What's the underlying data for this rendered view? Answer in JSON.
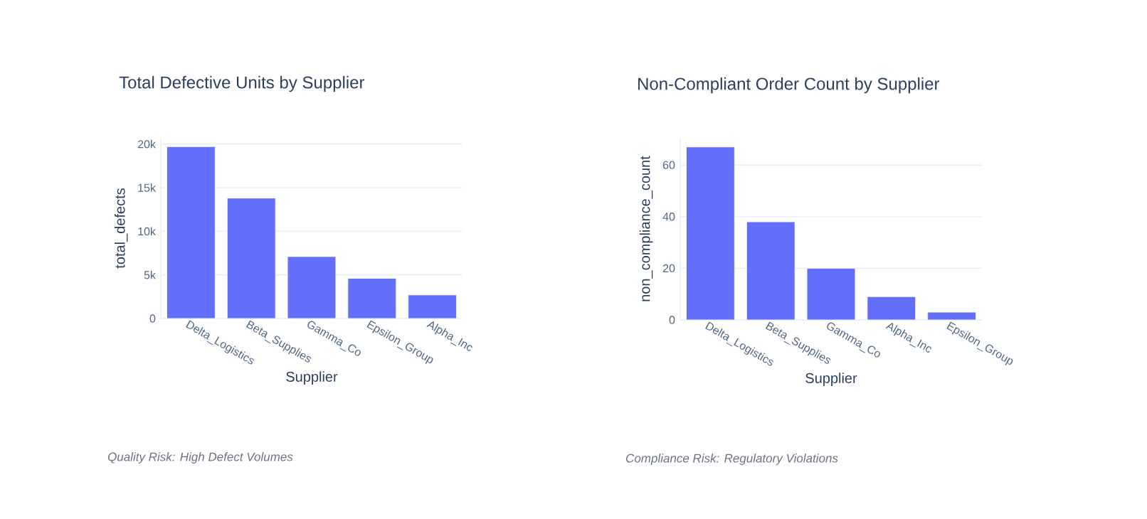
{
  "chart_data": [
    {
      "type": "bar",
      "title": "Total Defective Units by Supplier",
      "xlabel": "Supplier",
      "ylabel": "total_defects",
      "categories": [
        "Delta_Logistics",
        "Beta_Supplies",
        "Gamma_Co",
        "Epsilon_Group",
        "Alpha_Inc"
      ],
      "values": [
        19700,
        13800,
        7100,
        4600,
        2700
      ],
      "color": "#636efa",
      "ylim": [
        0,
        20700
      ],
      "yticks": [
        0,
        {
          "value": 5000,
          "label": "5k"
        },
        {
          "value": 10000,
          "label": "10k"
        },
        {
          "value": 15000,
          "label": "15k"
        },
        {
          "value": 20000,
          "label": "20k"
        }
      ],
      "grid": "y",
      "annotations": [
        "Quality Risk: High Defect Volumes"
      ]
    },
    {
      "type": "bar",
      "title": "Non-Compliant Order Count by Supplier",
      "xlabel": "Supplier",
      "ylabel": "non_compliance_count",
      "categories": [
        "Delta_Logistics",
        "Beta_Supplies",
        "Gamma_Co",
        "Alpha_Inc",
        "Epsilon_Group"
      ],
      "values": [
        67,
        38,
        20,
        9,
        3
      ],
      "color": "#636efa",
      "ylim": [
        0,
        70.5
      ],
      "yticks": [
        0,
        20,
        40,
        60
      ],
      "grid": "y",
      "annotations": [
        "Compliance Risk: Regulatory Violations"
      ]
    }
  ]
}
